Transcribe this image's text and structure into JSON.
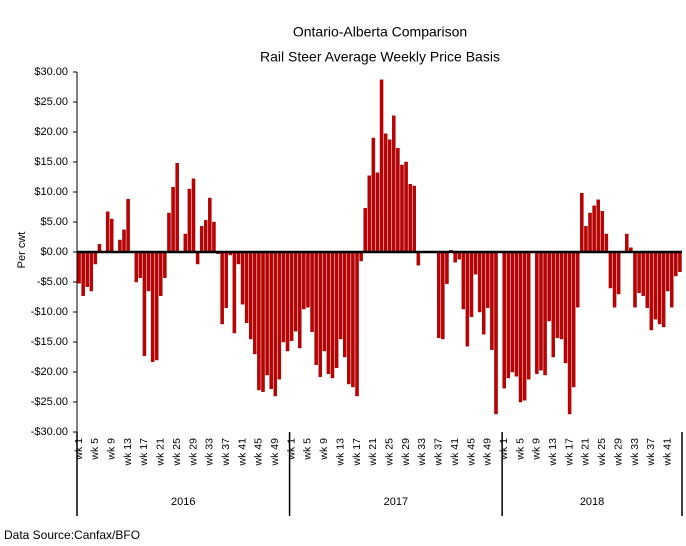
{
  "chart_data": {
    "type": "bar",
    "title": "Ontario-Alberta Comparison",
    "subtitle": "Rail Steer Average Weekly Price Basis",
    "y_label": "Per cwt",
    "source": "Data Source:Canfax/BFO",
    "color": "#c00000",
    "ylim": [
      -30,
      30
    ],
    "yticks": [
      {
        "value": -30,
        "label": "-$30.00"
      },
      {
        "value": -25,
        "label": "-$25.00"
      },
      {
        "value": -20,
        "label": "-$20.00"
      },
      {
        "value": -15,
        "label": "-$15.00"
      },
      {
        "value": -10,
        "label": "-$10.00"
      },
      {
        "value": -5,
        "label": "-$5.00"
      },
      {
        "value": 0,
        "label": "$0.00"
      },
      {
        "value": 5,
        "label": "$5.00"
      },
      {
        "value": 10,
        "label": "$10.00"
      },
      {
        "value": 15,
        "label": "$15.00"
      },
      {
        "value": 20,
        "label": "$20.00"
      },
      {
        "value": 25,
        "label": "$25.00"
      },
      {
        "value": 30,
        "label": "$30.00"
      }
    ],
    "groups": [
      "2016",
      "2017",
      "2018"
    ],
    "categories": [
      "wk 1",
      null,
      null,
      null,
      "wk 5",
      null,
      null,
      null,
      "wk 9",
      null,
      null,
      null,
      "wk 13",
      null,
      null,
      null,
      "wk 17",
      null,
      null,
      null,
      "wk 21",
      null,
      null,
      null,
      "wk 25",
      null,
      null,
      null,
      "wk 29",
      null,
      null,
      null,
      "wk 33",
      null,
      null,
      null,
      "wk 37",
      null,
      null,
      null,
      "wk 41",
      null,
      null,
      null,
      "wk 45",
      null,
      null,
      null,
      "wk 49",
      null,
      null,
      null,
      "wk 1",
      null,
      null,
      null,
      "wk 5",
      null,
      null,
      null,
      "wk 9",
      null,
      null,
      null,
      "wk 13",
      null,
      null,
      null,
      "wk 17",
      null,
      null,
      null,
      "wk 21",
      null,
      null,
      null,
      "wk 25",
      null,
      null,
      null,
      "wk 29",
      null,
      null,
      null,
      "wk 33",
      null,
      null,
      null,
      "wk 37",
      null,
      null,
      null,
      "wk 41",
      null,
      null,
      null,
      "wk 45",
      null,
      null,
      null,
      "wk 49",
      null,
      null,
      null,
      "wk 1",
      null,
      null,
      null,
      "wk 5",
      null,
      null,
      null,
      "wk 9",
      null,
      null,
      null,
      "wk 13",
      null,
      null,
      null,
      "wk 17",
      null,
      null,
      null,
      "wk 21",
      null,
      null,
      null,
      "wk 25",
      null,
      null,
      null,
      "wk 29",
      null,
      null,
      null,
      "wk 33",
      null,
      null,
      null,
      "wk 37",
      null,
      null,
      null,
      "wk 41",
      null,
      null,
      null
    ],
    "values": [
      -5.2,
      -7.3,
      -5.8,
      -6.5,
      -2,
      1.3,
      0,
      6.7,
      5.5,
      0,
      2,
      3.7,
      8.8,
      0,
      -5,
      -4.3,
      -17.3,
      -6.5,
      -18.3,
      -18,
      -7.3,
      -4.3,
      6.5,
      10.8,
      14.8,
      0,
      3,
      10.5,
      12.2,
      -2,
      4.3,
      5.3,
      9,
      5,
      -0.3,
      -12,
      -9.3,
      -0.5,
      -13.5,
      -2,
      -8.7,
      -11.8,
      -14.5,
      -17,
      -23,
      -23.3,
      -20.5,
      -22.8,
      -24,
      -21.2,
      -15,
      -16.5,
      -14.8,
      -13.2,
      -16,
      -9.5,
      -9.2,
      -13.3,
      -18.8,
      -20.8,
      -16.5,
      -20.3,
      -21,
      -19.3,
      -14.5,
      -17.5,
      -22,
      -22.5,
      -24,
      -1.5,
      7.3,
      12.7,
      19,
      13.2,
      28.7,
      19.7,
      18.7,
      22.7,
      17.3,
      14.5,
      15,
      11.3,
      11,
      -2.2,
      0,
      0,
      0,
      0,
      -14.3,
      -14.5,
      -5.3,
      0.3,
      -1.7,
      -1.2,
      -9.5,
      -15.7,
      -10.8,
      -3.7,
      -10,
      -13.7,
      -9.3,
      -16.3,
      -27,
      0,
      -22.7,
      -21,
      -20,
      -20.7,
      -25,
      -24.7,
      -21.2,
      0,
      -20.3,
      -19.7,
      -20.5,
      -11.5,
      -17.5,
      -14.3,
      -14.5,
      -18.5,
      -27,
      -22.5,
      -9.2,
      9.8,
      4.3,
      6.5,
      7.7,
      8.7,
      6.8,
      3,
      -6,
      -9.2,
      -7,
      0,
      3,
      0.7,
      -9.2,
      -6.8,
      -7.3,
      -9.3,
      -13,
      -11.2,
      -12,
      -12.5,
      -6.5,
      -9.2,
      -4,
      -3.3
    ]
  }
}
